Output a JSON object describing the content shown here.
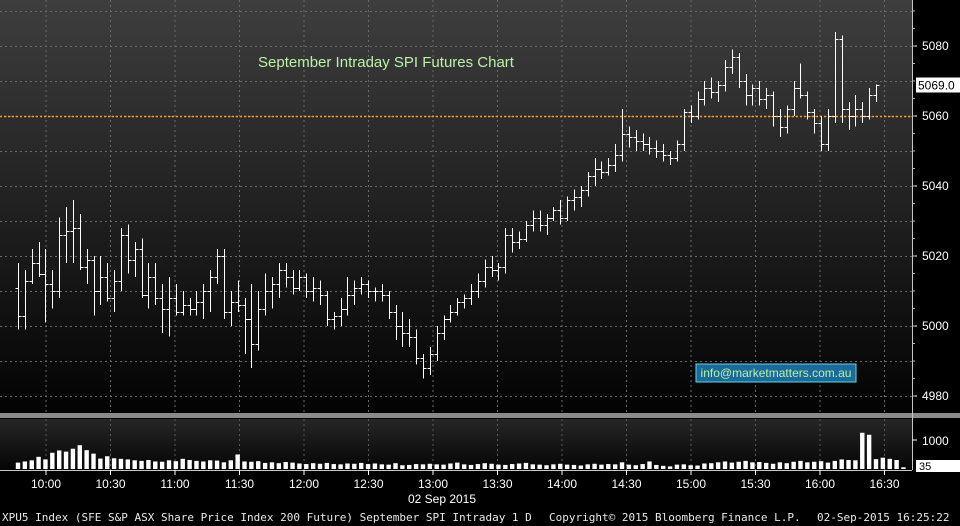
{
  "chart_data": {
    "type": "bar",
    "title": "September Intraday SPI Futures Chart",
    "x_ticks": [
      "10:00",
      "10:30",
      "11:00",
      "11:30",
      "12:00",
      "12:30",
      "13:00",
      "13:30",
      "14:00",
      "14:30",
      "15:00",
      "15:30",
      "16:00",
      "16:30"
    ],
    "x_date_label": "02 Sep 2015",
    "y_ticks": [
      4980,
      5000,
      5020,
      5040,
      5060,
      5080
    ],
    "ylim": [
      4976,
      5092
    ],
    "last_price": 5069.0,
    "last_price_label": "5069.0",
    "reference_level": 5060,
    "volume_ticks": [
      "1000",
      "35"
    ],
    "watermark": "info@marketmatters.com.au",
    "ohlc": [
      [
        5011,
        5018,
        4999,
        5003
      ],
      [
        5003,
        5016,
        4999,
        5013
      ],
      [
        5013,
        5022,
        5012,
        5018
      ],
      [
        5018,
        5024,
        5014,
        5015
      ],
      [
        5015,
        5022,
        5001,
        5012
      ],
      [
        5012,
        5016,
        5005,
        5010
      ],
      [
        5010,
        5031,
        5008,
        5026
      ],
      [
        5026,
        5034,
        5018,
        5027
      ],
      [
        5027,
        5036,
        5018,
        5028
      ],
      [
        5028,
        5032,
        5016,
        5017
      ],
      [
        5017,
        5022,
        5012,
        5019
      ],
      [
        5019,
        5020,
        5003,
        5010
      ],
      [
        5010,
        5020,
        5006,
        5014
      ],
      [
        5014,
        5018,
        5007,
        5008
      ],
      [
        5008,
        5016,
        5004,
        5013
      ],
      [
        5013,
        5028,
        5010,
        5026
      ],
      [
        5026,
        5029,
        5015,
        5019
      ],
      [
        5019,
        5024,
        5014,
        5022
      ],
      [
        5022,
        5025,
        5008,
        5009
      ],
      [
        5009,
        5018,
        5005,
        5014
      ],
      [
        5014,
        5018,
        5006,
        5008
      ],
      [
        5008,
        5012,
        4998,
        5005
      ],
      [
        5005,
        5014,
        4997,
        5008
      ],
      [
        5008,
        5012,
        5003,
        5004
      ],
      [
        5004,
        5010,
        5003,
        5006
      ],
      [
        5006,
        5008,
        5003,
        5005
      ],
      [
        5005,
        5010,
        5003,
        5007
      ],
      [
        5007,
        5012,
        5002,
        5010
      ],
      [
        5010,
        5016,
        5004,
        5014
      ],
      [
        5014,
        5022,
        5012,
        5020
      ],
      [
        5020,
        5022,
        5002,
        5004
      ],
      [
        5004,
        5010,
        5000,
        5007
      ],
      [
        5007,
        5013,
        5004,
        5006
      ],
      [
        5006,
        5008,
        4992,
        5002
      ],
      [
        5002,
        5012,
        4988,
        4995
      ],
      [
        4995,
        5010,
        4993,
        5005
      ],
      [
        5005,
        5015,
        5003,
        5010
      ],
      [
        5010,
        5014,
        5005,
        5012
      ],
      [
        5012,
        5018,
        5008,
        5016
      ],
      [
        5016,
        5018,
        5011,
        5014
      ],
      [
        5014,
        5016,
        5009,
        5011
      ],
      [
        5011,
        5016,
        5010,
        5014
      ],
      [
        5014,
        5015,
        5008,
        5010
      ],
      [
        5010,
        5014,
        5007,
        5011
      ],
      [
        5011,
        5013,
        5006,
        5009
      ],
      [
        5009,
        5010,
        5000,
        5002
      ],
      [
        5002,
        5004,
        4999,
        5003
      ],
      [
        5003,
        5008,
        5000,
        5005
      ],
      [
        5005,
        5014,
        5003,
        5009
      ],
      [
        5009,
        5013,
        5006,
        5011
      ],
      [
        5011,
        5014,
        5009,
        5012
      ],
      [
        5012,
        5013,
        5008,
        5010
      ],
      [
        5010,
        5011,
        5007,
        5010
      ],
      [
        5010,
        5012,
        5007,
        5009
      ],
      [
        5009,
        5010,
        5002,
        5004
      ],
      [
        5004,
        5006,
        4996,
        5000
      ],
      [
        5000,
        5004,
        4994,
        4998
      ],
      [
        4998,
        5002,
        4994,
        4997
      ],
      [
        4997,
        4999,
        4989,
        4991
      ],
      [
        4991,
        4992,
        4985,
        4988
      ],
      [
        4988,
        4994,
        4986,
        4992
      ],
      [
        4992,
        5000,
        4990,
        4998
      ],
      [
        4998,
        5003,
        4996,
        5002
      ],
      [
        5002,
        5006,
        5001,
        5004
      ],
      [
        5004,
        5008,
        5003,
        5007
      ],
      [
        5007,
        5009,
        5005,
        5008
      ],
      [
        5008,
        5012,
        5006,
        5010
      ],
      [
        5010,
        5015,
        5008,
        5013
      ],
      [
        5013,
        5019,
        5011,
        5017
      ],
      [
        5017,
        5020,
        5014,
        5016
      ],
      [
        5016,
        5018,
        5013,
        5017
      ],
      [
        5017,
        5028,
        5015,
        5026
      ],
      [
        5026,
        5028,
        5021,
        5024
      ],
      [
        5024,
        5027,
        5022,
        5025
      ],
      [
        5025,
        5030,
        5024,
        5029
      ],
      [
        5029,
        5033,
        5027,
        5031
      ],
      [
        5031,
        5033,
        5027,
        5029
      ],
      [
        5029,
        5032,
        5026,
        5031
      ],
      [
        5031,
        5034,
        5030,
        5033
      ],
      [
        5033,
        5036,
        5029,
        5031
      ],
      [
        5031,
        5037,
        5030,
        5036
      ],
      [
        5036,
        5039,
        5033,
        5037
      ],
      [
        5037,
        5040,
        5034,
        5039
      ],
      [
        5039,
        5044,
        5037,
        5043
      ],
      [
        5043,
        5048,
        5040,
        5045
      ],
      [
        5045,
        5047,
        5042,
        5044
      ],
      [
        5044,
        5048,
        5043,
        5046
      ],
      [
        5046,
        5052,
        5044,
        5049
      ],
      [
        5049,
        5062,
        5047,
        5055
      ],
      [
        5055,
        5057,
        5051,
        5054
      ],
      [
        5054,
        5056,
        5050,
        5053
      ],
      [
        5053,
        5055,
        5050,
        5052
      ],
      [
        5052,
        5054,
        5049,
        5051
      ],
      [
        5051,
        5053,
        5048,
        5050
      ],
      [
        5050,
        5052,
        5047,
        5049
      ],
      [
        5049,
        5050,
        5046,
        5048
      ],
      [
        5048,
        5053,
        5047,
        5052
      ],
      [
        5052,
        5062,
        5050,
        5061
      ],
      [
        5061,
        5063,
        5058,
        5060
      ],
      [
        5060,
        5067,
        5059,
        5065
      ],
      [
        5065,
        5070,
        5063,
        5068
      ],
      [
        5068,
        5071,
        5065,
        5067
      ],
      [
        5067,
        5070,
        5064,
        5069
      ],
      [
        5069,
        5076,
        5067,
        5074
      ],
      [
        5074,
        5079,
        5072,
        5077
      ],
      [
        5077,
        5078,
        5068,
        5070
      ],
      [
        5070,
        5072,
        5063,
        5066
      ],
      [
        5066,
        5069,
        5063,
        5068
      ],
      [
        5068,
        5070,
        5063,
        5065
      ],
      [
        5065,
        5068,
        5062,
        5066
      ],
      [
        5066,
        5067,
        5057,
        5060
      ],
      [
        5060,
        5062,
        5054,
        5057
      ],
      [
        5057,
        5063,
        5055,
        5062
      ],
      [
        5062,
        5070,
        5060,
        5068
      ],
      [
        5068,
        5075,
        5065,
        5066
      ],
      [
        5066,
        5067,
        5059,
        5061
      ],
      [
        5061,
        5062,
        5055,
        5058
      ],
      [
        5058,
        5060,
        5050,
        5052
      ],
      [
        5052,
        5062,
        5050,
        5060
      ],
      [
        5060,
        5084,
        5058,
        5082
      ],
      [
        5082,
        5083,
        5058,
        5062
      ],
      [
        5062,
        5064,
        5056,
        5060
      ],
      [
        5060,
        5066,
        5057,
        5062
      ],
      [
        5062,
        5064,
        5058,
        5060
      ],
      [
        5060,
        5068,
        5059,
        5066
      ],
      [
        5066,
        5069,
        5064,
        5069
      ]
    ],
    "volume": [
      220,
      260,
      300,
      420,
      330,
      560,
      640,
      600,
      700,
      820,
      650,
      530,
      360,
      440,
      370,
      350,
      330,
      300,
      280,
      310,
      260,
      250,
      300,
      270,
      350,
      310,
      280,
      260,
      300,
      290,
      230,
      300,
      500,
      260,
      250,
      270,
      210,
      230,
      200,
      240,
      220,
      190,
      170,
      200,
      180,
      210,
      170,
      160,
      190,
      180,
      210,
      170,
      190,
      160,
      150,
      200,
      130,
      140,
      170,
      160,
      180,
      160,
      150,
      190,
      220,
      160,
      140,
      170,
      200,
      180,
      150,
      140,
      170,
      190,
      210,
      160,
      150,
      130,
      160,
      180,
      150,
      140,
      120,
      160,
      180,
      150,
      170,
      160,
      230,
      150,
      130,
      170,
      260,
      140,
      110,
      90,
      150,
      160,
      130,
      120,
      190,
      200,
      230,
      260,
      220,
      250,
      280,
      230,
      240,
      210,
      180,
      230,
      200,
      250,
      280,
      230,
      250,
      270,
      220,
      280,
      330,
      310,
      300,
      1250,
      1180,
      340,
      390,
      350,
      310,
      60
    ]
  },
  "footer": {
    "left": "XPU5 Index (SFE S&P ASX Share Price Index 200 Future) September SPI Intraday 1 D",
    "copyright": "Copyright© 2015 Bloomberg Finance L.P.",
    "timestamp": "02-Sep-2015 16:25:22"
  },
  "colors": {
    "background_top": "#3e3e3e",
    "background_bottom": "#000000",
    "bars": "#ffffff",
    "reference_line": "#ff9a1a",
    "title_text": "#b8f2a6",
    "axis_text": "#ffffff",
    "watermark_text": "#b8f2a6",
    "watermark_border": "#5fd3e6",
    "watermark_bg": "#1a6a9a"
  }
}
